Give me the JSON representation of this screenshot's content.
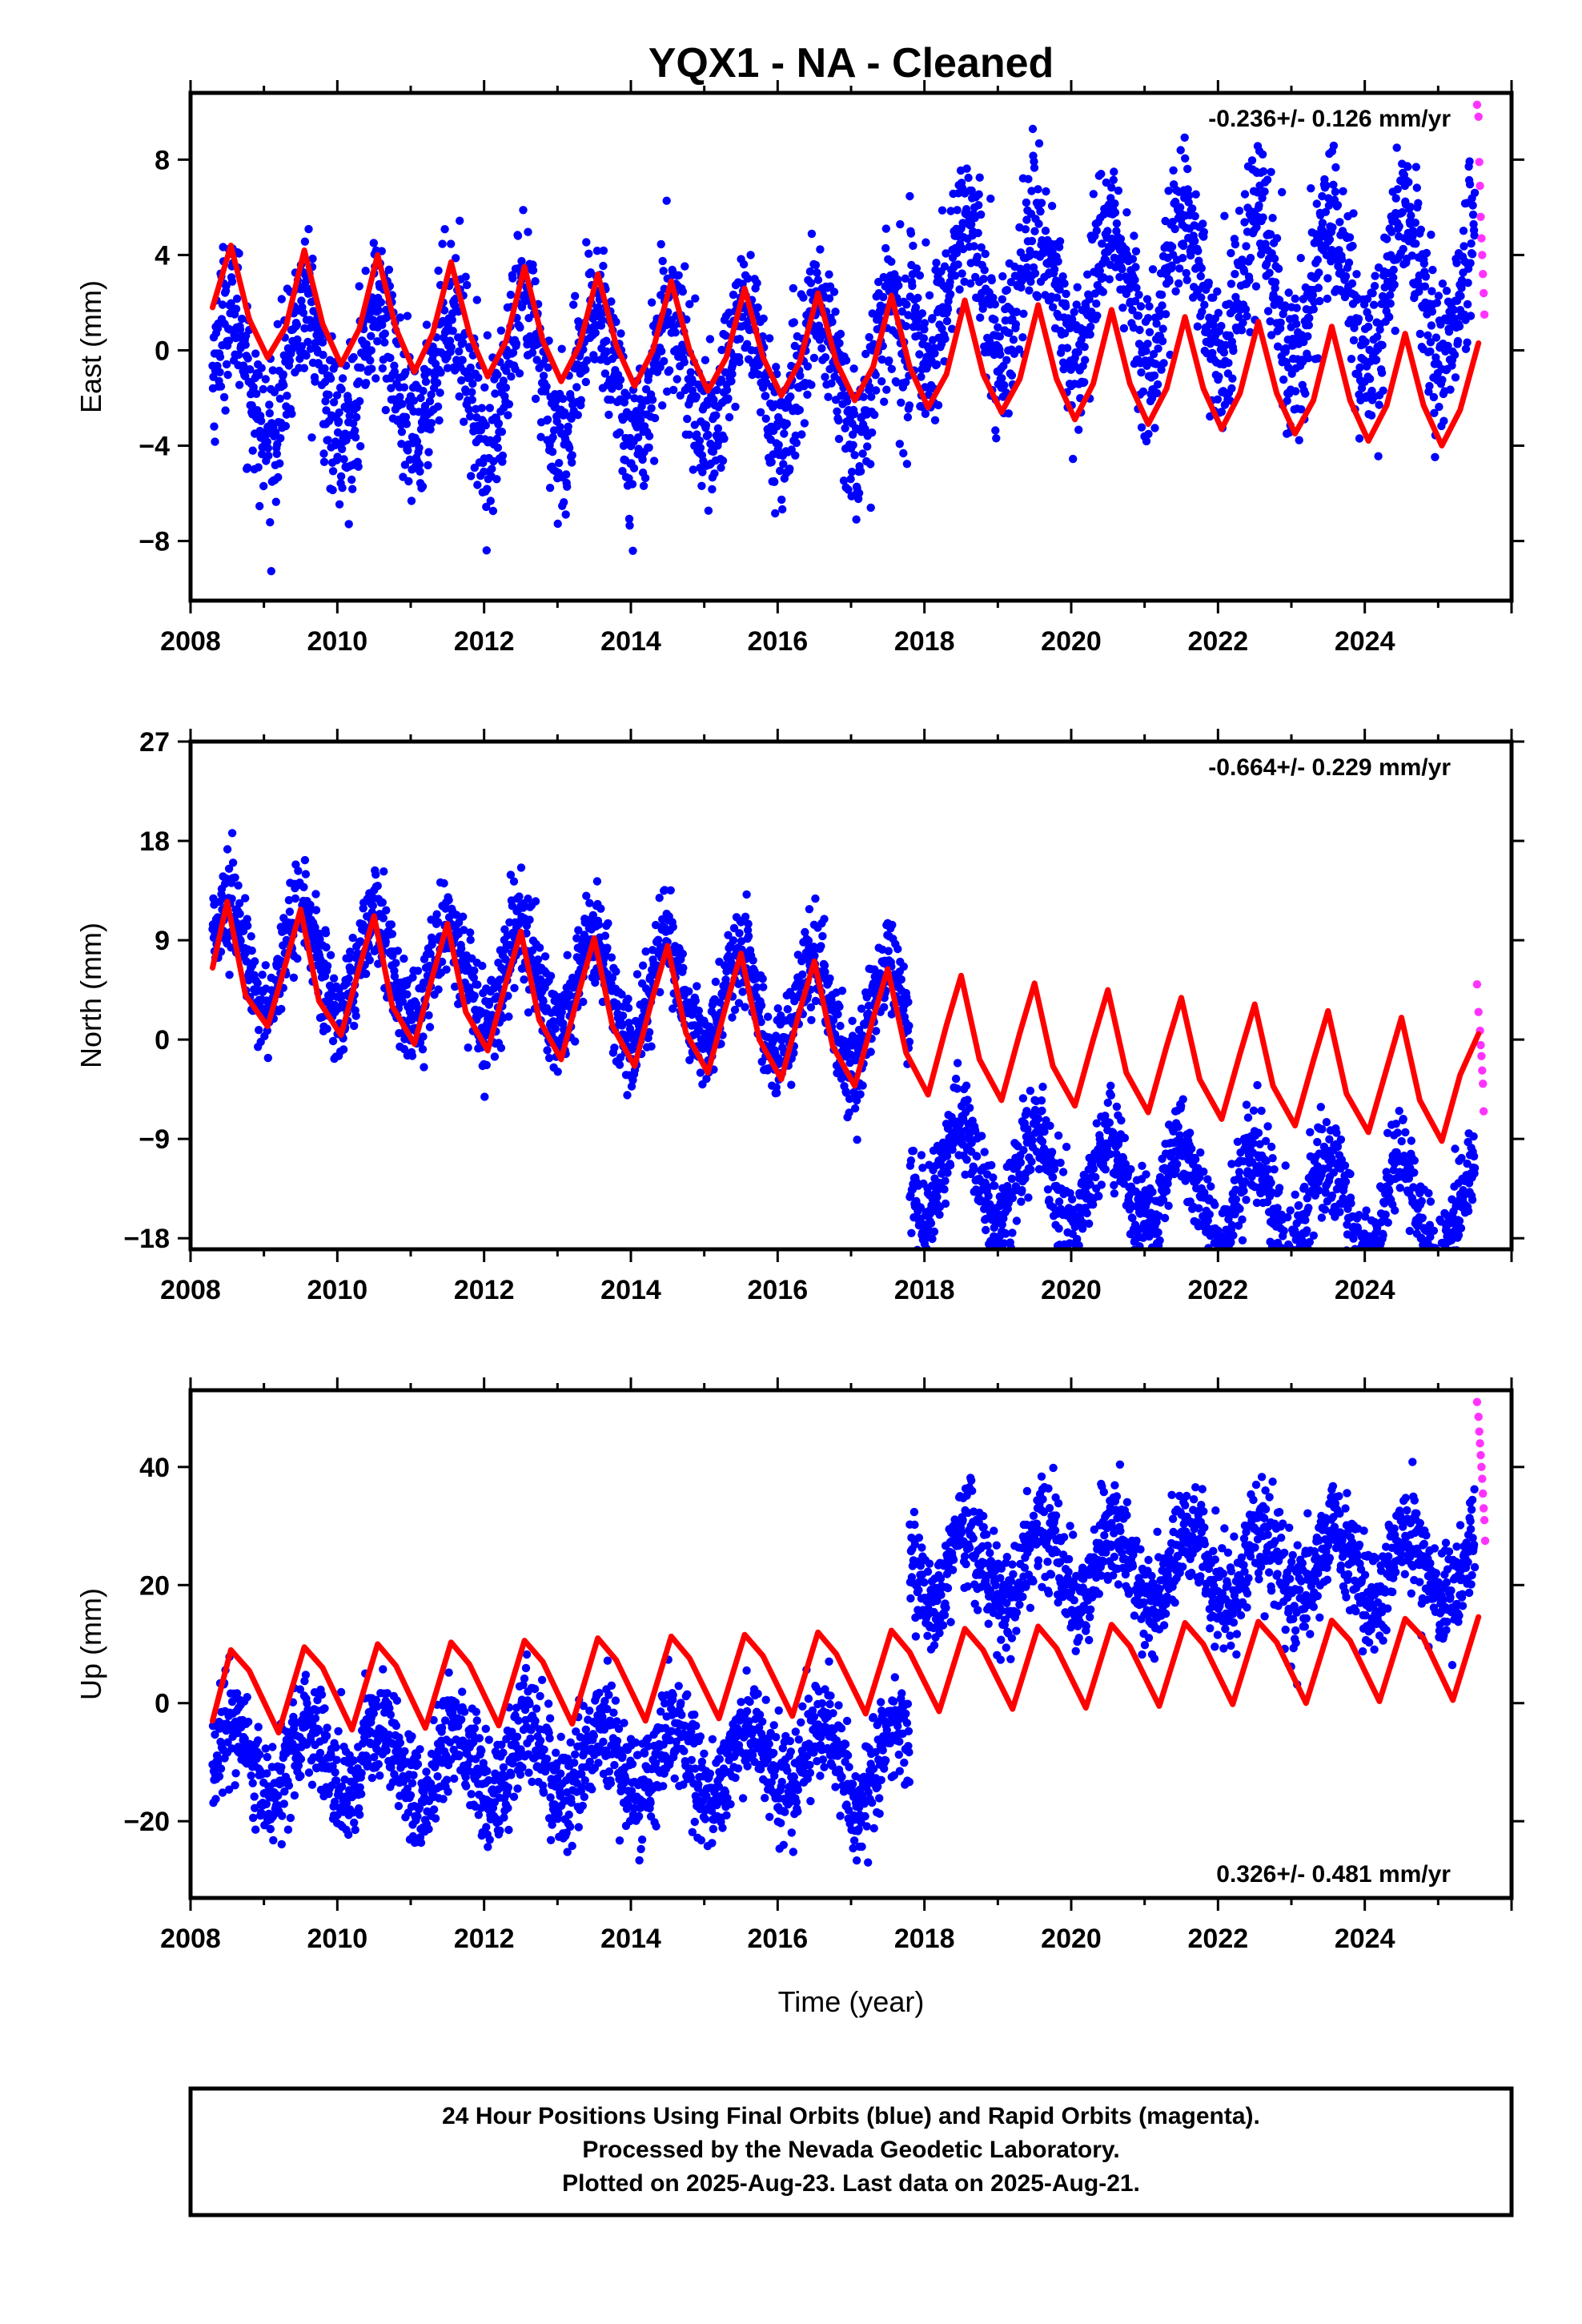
{
  "title": "YQX1  - NA - Cleaned",
  "footer": {
    "line1": "24 Hour Positions Using Final Orbits (blue) and Rapid Orbits (magenta).",
    "line2": "Processed by the Nevada Geodetic Laboratory.",
    "line3": "Plotted on 2025-Aug-23. Last data on 2025-Aug-21."
  },
  "colors": {
    "final": "#0000ff",
    "rapid": "#ff33ff",
    "model": "#ff0000"
  },
  "chart_data": [
    {
      "type": "scatter",
      "component": "east",
      "ylabel": "East (mm)",
      "xlabel": "",
      "rate_label": "-0.236+/- 0.126 mm/yr",
      "xlim": [
        2008,
        2026
      ],
      "ylim": [
        -10.5,
        10.8
      ],
      "xticks": [
        2008,
        2010,
        2012,
        2014,
        2016,
        2018,
        2020,
        2022,
        2024
      ],
      "yticks": [
        -8,
        -4,
        0,
        4,
        8
      ],
      "ytick_labels": [
        "−8",
        "−4",
        "0",
        "4",
        "8"
      ],
      "final_points": {
        "x_range": [
          2008.3,
          2025.5
        ],
        "model": {
          "offset_before_2017_8": -1.0,
          "offset_after_2017_8": 2.6,
          "annual_amplitude": 2.8,
          "annual_peak_phase_yr": 0.55,
          "noise_std": 1.6
        }
      },
      "rapid_points": {
        "x": [
          2025.53,
          2025.55,
          2025.56,
          2025.57,
          2025.58,
          2025.59,
          2025.6,
          2025.61,
          2025.62,
          2025.63
        ],
        "y": [
          10.3,
          9.8,
          7.9,
          6.9,
          5.6,
          4.7,
          4.0,
          3.2,
          2.4,
          1.5
        ]
      },
      "model_curve": {
        "x": [
          2008.3,
          2008.55,
          2008.8,
          2009.05,
          2009.3,
          2009.55,
          2009.8,
          2010.05,
          2010.3,
          2010.55,
          2010.8,
          2011.05,
          2011.3,
          2011.55,
          2011.8,
          2012.05,
          2012.3,
          2012.55,
          2012.8,
          2013.05,
          2013.3,
          2013.55,
          2013.8,
          2014.05,
          2014.3,
          2014.55,
          2014.8,
          2015.05,
          2015.3,
          2015.55,
          2015.8,
          2016.05,
          2016.3,
          2016.55,
          2016.8,
          2017.05,
          2017.3,
          2017.55,
          2017.8,
          2018.05,
          2018.3,
          2018.55,
          2018.8,
          2019.05,
          2019.3,
          2019.55,
          2019.8,
          2020.05,
          2020.3,
          2020.55,
          2020.8,
          2021.05,
          2021.3,
          2021.55,
          2021.8,
          2022.05,
          2022.3,
          2022.55,
          2022.8,
          2023.05,
          2023.3,
          2023.55,
          2023.8,
          2024.05,
          2024.3,
          2024.55,
          2024.8,
          2025.05,
          2025.3,
          2025.55
        ],
        "y": [
          1.8,
          4.4,
          1.3,
          -0.3,
          1.0,
          4.2,
          1.1,
          -0.6,
          0.9,
          4.0,
          0.9,
          -0.9,
          0.7,
          3.7,
          0.7,
          -1.1,
          0.4,
          3.5,
          0.4,
          -1.3,
          0.2,
          3.2,
          0.2,
          -1.5,
          0.0,
          2.9,
          0.0,
          -1.7,
          -0.3,
          2.6,
          -0.3,
          -1.9,
          -0.5,
          2.4,
          -0.5,
          -2.1,
          -0.7,
          2.3,
          -0.7,
          -2.4,
          -1.0,
          2.1,
          -1.0,
          -2.6,
          -1.2,
          1.9,
          -1.2,
          -2.9,
          -1.4,
          1.7,
          -1.4,
          -3.1,
          -1.6,
          1.4,
          -1.6,
          -3.3,
          -1.8,
          1.2,
          -1.8,
          -3.5,
          -2.1,
          1.0,
          -2.1,
          -3.8,
          -2.3,
          0.7,
          -2.3,
          -4.0,
          -2.5,
          0.3
        ]
      }
    },
    {
      "type": "scatter",
      "component": "north",
      "ylabel": "North (mm)",
      "xlabel": "",
      "rate_label": "-0.664+/- 0.229 mm/yr",
      "xlim": [
        2008,
        2026
      ],
      "ylim": [
        -19,
        27
      ],
      "xticks": [
        2008,
        2010,
        2012,
        2014,
        2016,
        2018,
        2020,
        2022,
        2024
      ],
      "yticks": [
        -18,
        -9,
        0,
        9,
        18,
        27
      ],
      "ytick_labels": [
        "−18",
        "−9",
        "0",
        "9",
        "18",
        "27"
      ],
      "final_points": {
        "x_range": [
          2008.3,
          2025.5
        ],
        "model": {
          "offset_before_2017_8": 8.0,
          "offset_after_2017_8": -5.0,
          "trend_per_year": -0.66,
          "annual_amplitude": 4.5,
          "annual_peak_phase_yr": 0.5,
          "noise_std": 2.2
        }
      },
      "rapid_points": {
        "x": [
          2025.53,
          2025.55,
          2025.57,
          2025.58,
          2025.59,
          2025.6,
          2025.61,
          2025.62
        ],
        "y": [
          5.0,
          2.5,
          0.8,
          -0.5,
          -1.5,
          -2.8,
          -4.0,
          -6.5
        ]
      },
      "model_curve": {
        "x": [
          2008.3,
          2008.5,
          2008.75,
          2009.05,
          2009.3,
          2009.5,
          2009.75,
          2010.05,
          2010.3,
          2010.5,
          2010.75,
          2011.05,
          2011.3,
          2011.5,
          2011.75,
          2012.05,
          2012.3,
          2012.5,
          2012.75,
          2013.05,
          2013.3,
          2013.5,
          2013.75,
          2014.05,
          2014.3,
          2014.5,
          2014.75,
          2015.05,
          2015.3,
          2015.5,
          2015.75,
          2016.05,
          2016.3,
          2016.5,
          2016.75,
          2017.05,
          2017.3,
          2017.5,
          2017.75,
          2018.05,
          2018.3,
          2018.5,
          2018.75,
          2019.05,
          2019.3,
          2019.5,
          2019.75,
          2020.05,
          2020.3,
          2020.5,
          2020.75,
          2021.05,
          2021.3,
          2021.5,
          2021.75,
          2022.05,
          2022.3,
          2022.5,
          2022.75,
          2023.05,
          2023.3,
          2023.5,
          2023.75,
          2024.05,
          2024.3,
          2024.5,
          2024.75,
          2025.05,
          2025.3,
          2025.55
        ],
        "y": [
          6.5,
          12.5,
          4.0,
          1.2,
          7.0,
          11.8,
          3.5,
          0.4,
          6.5,
          11.2,
          3.0,
          -0.4,
          5.8,
          10.5,
          2.5,
          -1.0,
          5.2,
          9.8,
          1.8,
          -1.8,
          4.5,
          9.2,
          1.2,
          -2.4,
          3.9,
          8.5,
          0.6,
          -3.0,
          3.2,
          7.8,
          0.0,
          -3.6,
          2.6,
          7.1,
          -0.6,
          -4.2,
          1.9,
          6.4,
          -1.2,
          -5.0,
          1.3,
          5.8,
          -1.8,
          -5.5,
          0.6,
          5.1,
          -2.4,
          -6.0,
          0.0,
          4.5,
          -3.0,
          -6.6,
          -0.6,
          3.8,
          -3.6,
          -7.2,
          -1.3,
          3.2,
          -4.2,
          -7.8,
          -1.9,
          2.6,
          -4.9,
          -8.4,
          -2.6,
          2.0,
          -5.5,
          -9.2,
          -3.2,
          0.5
        ]
      }
    },
    {
      "type": "scatter",
      "component": "up",
      "ylabel": "Up (mm)",
      "xlabel": "Time (year)",
      "rate_label": "0.326+/- 0.481 mm/yr",
      "xlim": [
        2008,
        2026
      ],
      "ylim": [
        -33,
        53
      ],
      "xticks": [
        2008,
        2010,
        2012,
        2014,
        2016,
        2018,
        2020,
        2022,
        2024
      ],
      "yticks": [
        -20,
        0,
        20,
        40
      ],
      "ytick_labels": [
        "−20",
        "0",
        "20",
        "40"
      ],
      "final_points": {
        "x_range": [
          2008.3,
          2025.5
        ],
        "model": {
          "offset_before_2017_8": -10.0,
          "offset_after_2017_8": 23.0,
          "annual_amplitude": 6.0,
          "annual_peak_phase_yr": 0.6,
          "noise_std": 4.5
        }
      },
      "rapid_points": {
        "x": [
          2025.53,
          2025.55,
          2025.56,
          2025.57,
          2025.58,
          2025.59,
          2025.6,
          2025.61,
          2025.62,
          2025.63,
          2025.64
        ],
        "y": [
          51.0,
          48.5,
          46.0,
          44.0,
          42.0,
          40.0,
          38.0,
          35.5,
          33.0,
          31.0,
          27.5
        ]
      },
      "model_curve": {
        "x": [
          2008.3,
          2008.55,
          2008.8,
          2009.2,
          2009.55,
          2009.8,
          2010.2,
          2010.55,
          2010.8,
          2011.2,
          2011.55,
          2011.8,
          2012.2,
          2012.55,
          2012.8,
          2013.2,
          2013.55,
          2013.8,
          2014.2,
          2014.55,
          2014.8,
          2015.2,
          2015.55,
          2015.8,
          2016.2,
          2016.55,
          2016.8,
          2017.2,
          2017.55,
          2017.8,
          2018.2,
          2018.55,
          2018.8,
          2019.2,
          2019.55,
          2019.8,
          2020.2,
          2020.55,
          2020.8,
          2021.2,
          2021.55,
          2021.8,
          2022.2,
          2022.55,
          2022.8,
          2023.2,
          2023.55,
          2023.8,
          2024.2,
          2024.55,
          2024.8,
          2025.2,
          2025.55
        ],
        "y": [
          -3.0,
          9.0,
          5.5,
          -5.0,
          9.5,
          6.0,
          -4.5,
          10.0,
          6.3,
          -4.2,
          10.3,
          6.6,
          -3.8,
          10.6,
          7.0,
          -3.5,
          11.0,
          7.3,
          -3.0,
          11.3,
          7.6,
          -2.6,
          11.6,
          8.0,
          -2.2,
          12.0,
          8.3,
          -1.8,
          12.3,
          8.6,
          -1.4,
          12.6,
          9.0,
          -1.0,
          13.0,
          9.3,
          -0.8,
          13.3,
          9.6,
          -0.5,
          13.6,
          10.0,
          -0.2,
          13.8,
          10.3,
          0.0,
          14.0,
          10.6,
          0.3,
          14.3,
          11.0,
          0.5,
          14.6
        ]
      }
    }
  ]
}
